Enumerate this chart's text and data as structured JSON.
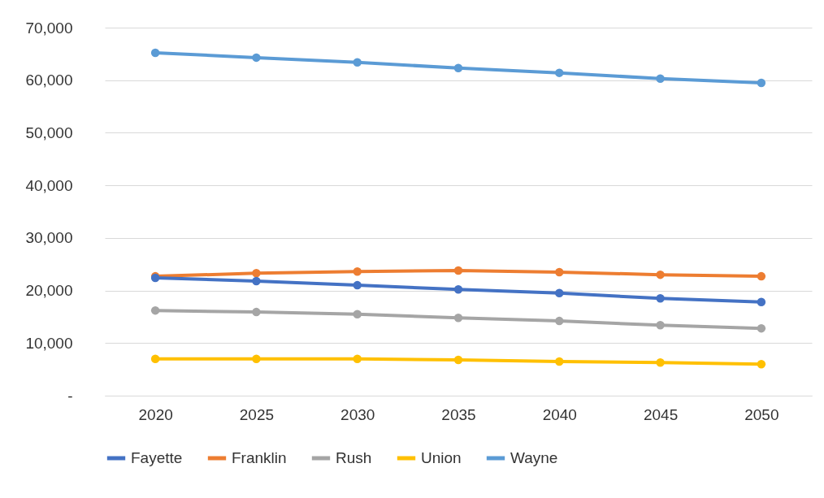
{
  "chart_data": {
    "type": "line",
    "categories": [
      "2020",
      "2025",
      "2030",
      "2035",
      "2040",
      "2045",
      "2050"
    ],
    "series": [
      {
        "name": "Fayette",
        "color": "#4472c4",
        "values": [
          22400,
          21800,
          21000,
          20200,
          19500,
          18500,
          17800
        ]
      },
      {
        "name": "Franklin",
        "color": "#ed7d31",
        "values": [
          22700,
          23300,
          23600,
          23800,
          23500,
          23000,
          22700
        ]
      },
      {
        "name": "Rush",
        "color": "#a5a5a5",
        "values": [
          16200,
          15900,
          15500,
          14800,
          14200,
          13400,
          12800
        ]
      },
      {
        "name": "Union",
        "color": "#ffc000",
        "values": [
          7000,
          7000,
          7000,
          6800,
          6500,
          6300,
          6000
        ]
      },
      {
        "name": "Wayne",
        "color": "#5b9bd5",
        "values": [
          65200,
          64300,
          63400,
          62300,
          61400,
          60300,
          59500
        ]
      }
    ],
    "ylim": [
      0,
      70000
    ],
    "yticks": [
      {
        "value": 0,
        "label": "-"
      },
      {
        "value": 10000,
        "label": "10,000"
      },
      {
        "value": 20000,
        "label": "20,000"
      },
      {
        "value": 30000,
        "label": "30,000"
      },
      {
        "value": 40000,
        "label": "40,000"
      },
      {
        "value": 50000,
        "label": "50,000"
      },
      {
        "value": 60000,
        "label": "60,000"
      },
      {
        "value": 70000,
        "label": "70,000"
      }
    ],
    "grid": "y",
    "legend": "bottom",
    "marker": "circle",
    "line_style": "solid"
  }
}
